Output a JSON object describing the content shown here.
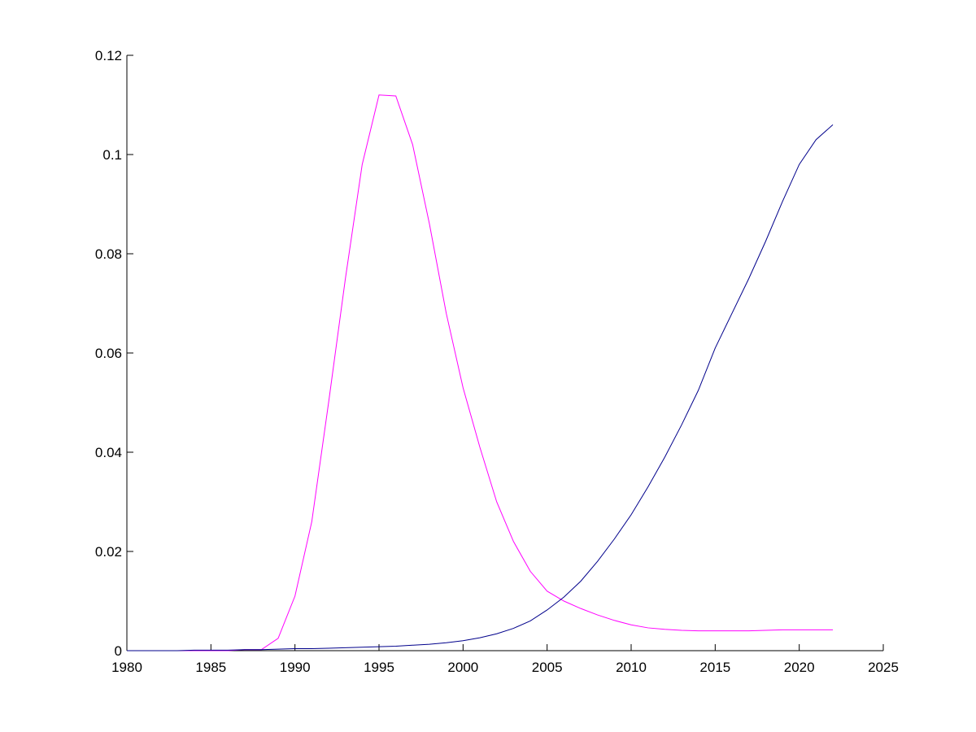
{
  "chart_data": {
    "type": "line",
    "x": [
      1980,
      1981,
      1982,
      1983,
      1984,
      1985,
      1986,
      1987,
      1988,
      1989,
      1990,
      1991,
      1992,
      1993,
      1994,
      1995,
      1996,
      1997,
      1998,
      1999,
      2000,
      2001,
      2002,
      2003,
      2004,
      2005,
      2006,
      2007,
      2008,
      2009,
      2010,
      2011,
      2012,
      2013,
      2014,
      2015,
      2016,
      2017,
      2018,
      2019,
      2020,
      2021,
      2022
    ],
    "series": [
      {
        "color": "#ff00ff",
        "values": [
          0,
          0,
          0,
          0,
          0,
          0,
          0,
          0.0002,
          0.0002,
          0.0025,
          0.011,
          0.026,
          0.05,
          0.075,
          0.098,
          0.112,
          0.1118,
          0.102,
          0.086,
          0.068,
          0.053,
          0.041,
          0.03,
          0.022,
          0.016,
          0.012,
          0.01,
          0.0085,
          0.0072,
          0.0061,
          0.0052,
          0.0046,
          0.0043,
          0.0041,
          0.004,
          0.004,
          0.004,
          0.004,
          0.0041,
          0.0042,
          0.0042,
          0.0042,
          0.0042
        ]
      },
      {
        "color": "#00008b",
        "values": [
          0,
          0,
          0,
          0,
          0.0001,
          0.0001,
          0.0001,
          0.0002,
          0.0002,
          0.0003,
          0.0004,
          0.0004,
          0.0005,
          0.0006,
          0.0007,
          0.0008,
          0.0009,
          0.0011,
          0.0013,
          0.0016,
          0.002,
          0.0026,
          0.0034,
          0.0045,
          0.006,
          0.0082,
          0.0108,
          0.014,
          0.018,
          0.0225,
          0.0274,
          0.033,
          0.039,
          0.0455,
          0.0525,
          0.061,
          0.068,
          0.075,
          0.0825,
          0.0905,
          0.098,
          0.103,
          0.106
        ]
      }
    ],
    "xlim": [
      1980,
      2025
    ],
    "xticks": [
      1980,
      1985,
      1990,
      1995,
      2000,
      2005,
      2010,
      2015,
      2020,
      2025
    ],
    "ylim": [
      0,
      0.12
    ],
    "yticks": [
      0,
      0.02,
      0.04,
      0.06,
      0.08,
      0.1,
      0.12
    ]
  }
}
